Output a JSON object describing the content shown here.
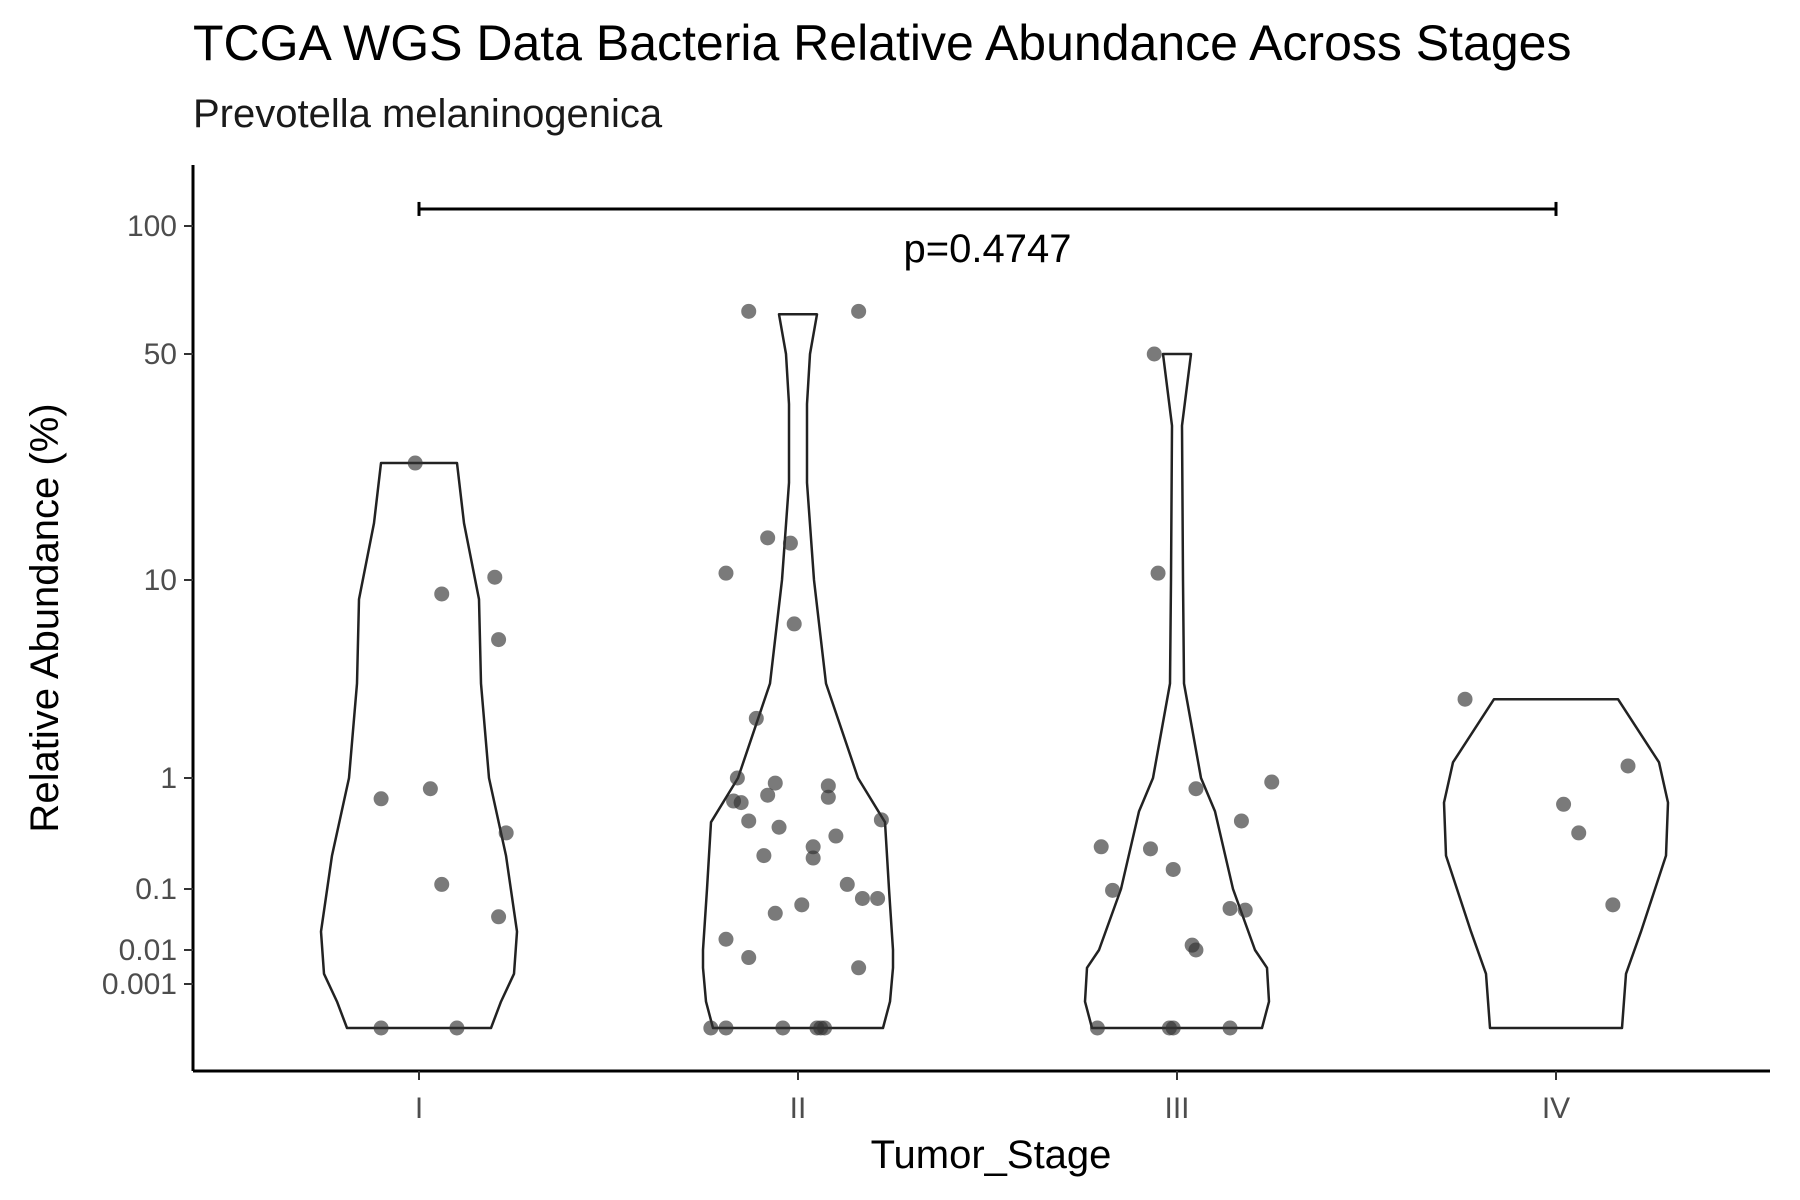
{
  "chart_data": {
    "type": "violin",
    "title": "TCGA WGS Data Bacteria Relative Abundance Across Stages",
    "subtitle": "Prevotella melaninogenica",
    "xlabel": "Tumor_Stage",
    "ylabel": "Relative Abundance (%)",
    "y_scale": "pseudo-log",
    "y_ticks": [
      100,
      50,
      10,
      1,
      0.1,
      0.01,
      0.001
    ],
    "y_tick_labels": [
      "100",
      "50",
      "10",
      "1",
      "0.1",
      "0.01",
      "0.001"
    ],
    "ylim": [
      0,
      150
    ],
    "categories": [
      "I",
      "II",
      "III",
      "IV"
    ],
    "grid": false,
    "comparison": {
      "from": "I",
      "to": "IV",
      "label": "p=0.4747",
      "y": 110
    },
    "violin_max": {
      "I": 23,
      "II": 62,
      "III": 50,
      "IV": 2.5
    },
    "point_color": "#333333",
    "outline_color": "#222222",
    "points": {
      "I": [
        {
          "x": 0.99,
          "y": 23
        },
        {
          "x": 1.06,
          "y": 8.5
        },
        {
          "x": 1.2,
          "y": 10.2
        },
        {
          "x": 1.21,
          "y": 5.0
        },
        {
          "x": 0.9,
          "y": 0.65
        },
        {
          "x": 1.03,
          "y": 0.8
        },
        {
          "x": 1.23,
          "y": 0.32
        },
        {
          "x": 1.06,
          "y": 0.11
        },
        {
          "x": 1.21,
          "y": 0.035
        },
        {
          "x": 0.9,
          "y": 0
        },
        {
          "x": 1.1,
          "y": 0
        }
      ],
      "II": [
        {
          "x": 1.87,
          "y": 63
        },
        {
          "x": 2.16,
          "y": 63
        },
        {
          "x": 1.92,
          "y": 13.5
        },
        {
          "x": 1.98,
          "y": 13
        },
        {
          "x": 1.81,
          "y": 10.5
        },
        {
          "x": 1.99,
          "y": 6.0
        },
        {
          "x": 1.89,
          "y": 2.0
        },
        {
          "x": 1.84,
          "y": 1.0
        },
        {
          "x": 1.94,
          "y": 0.9
        },
        {
          "x": 2.08,
          "y": 0.85
        },
        {
          "x": 1.83,
          "y": 0.62
        },
        {
          "x": 1.85,
          "y": 0.6
        },
        {
          "x": 1.92,
          "y": 0.7
        },
        {
          "x": 2.08,
          "y": 0.67
        },
        {
          "x": 1.87,
          "y": 0.41
        },
        {
          "x": 1.95,
          "y": 0.36
        },
        {
          "x": 2.22,
          "y": 0.42
        },
        {
          "x": 2.1,
          "y": 0.3
        },
        {
          "x": 2.04,
          "y": 0.24
        },
        {
          "x": 1.91,
          "y": 0.2
        },
        {
          "x": 2.04,
          "y": 0.19
        },
        {
          "x": 2.13,
          "y": 0.11
        },
        {
          "x": 2.17,
          "y": 0.07
        },
        {
          "x": 2.21,
          "y": 0.07
        },
        {
          "x": 2.01,
          "y": 0.055
        },
        {
          "x": 1.94,
          "y": 0.04
        },
        {
          "x": 1.81,
          "y": 0.015
        },
        {
          "x": 1.87,
          "y": 0.006
        },
        {
          "x": 2.16,
          "y": 0.003
        },
        {
          "x": 1.77,
          "y": 0
        },
        {
          "x": 1.81,
          "y": 0
        },
        {
          "x": 1.96,
          "y": 0
        },
        {
          "x": 2.05,
          "y": 0
        },
        {
          "x": 2.06,
          "y": 0
        },
        {
          "x": 2.07,
          "y": 0
        }
      ],
      "III": [
        {
          "x": 2.94,
          "y": 50
        },
        {
          "x": 2.95,
          "y": 10.5
        },
        {
          "x": 3.25,
          "y": 0.92
        },
        {
          "x": 3.05,
          "y": 0.8
        },
        {
          "x": 3.17,
          "y": 0.41
        },
        {
          "x": 2.8,
          "y": 0.24
        },
        {
          "x": 2.93,
          "y": 0.23
        },
        {
          "x": 2.99,
          "y": 0.15
        },
        {
          "x": 2.83,
          "y": 0.095
        },
        {
          "x": 3.14,
          "y": 0.048
        },
        {
          "x": 3.18,
          "y": 0.045
        },
        {
          "x": 3.04,
          "y": 0.012
        },
        {
          "x": 3.05,
          "y": 0.01
        },
        {
          "x": 2.79,
          "y": 0
        },
        {
          "x": 2.98,
          "y": 0
        },
        {
          "x": 2.99,
          "y": 0
        },
        {
          "x": 3.14,
          "y": 0
        }
      ],
      "IV": [
        {
          "x": 3.76,
          "y": 2.5
        },
        {
          "x": 4.19,
          "y": 1.15
        },
        {
          "x": 4.02,
          "y": 0.58
        },
        {
          "x": 4.06,
          "y": 0.32
        },
        {
          "x": 4.15,
          "y": 0.055
        }
      ]
    }
  }
}
